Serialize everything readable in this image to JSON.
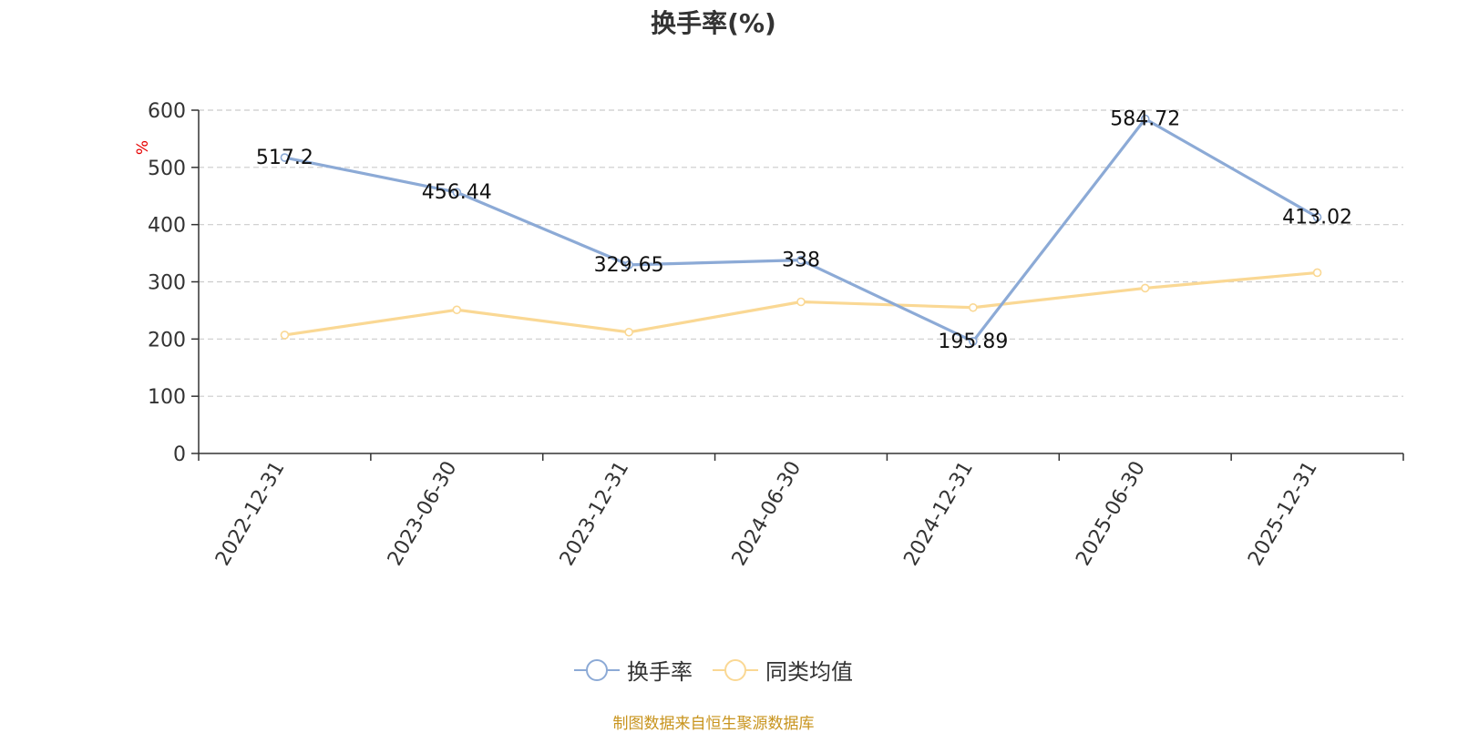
{
  "chart_data": {
    "type": "line",
    "title": "换手率(%)",
    "xlabel": "",
    "ylabel": "%",
    "categories": [
      "2022-12-31",
      "2023-06-30",
      "2023-12-31",
      "2024-06-30",
      "2024-12-31",
      "2025-06-30",
      "2025-12-31"
    ],
    "ylim": [
      0,
      600
    ],
    "yticks": [
      "0",
      "100",
      "200",
      "300",
      "400",
      "500",
      "600"
    ],
    "grid": true,
    "legend_position": "bottom",
    "series": [
      {
        "name": "换手率",
        "color": "#8caad6",
        "values": [
          517.2,
          456.44,
          329.65,
          338,
          195.89,
          584.72,
          413.02
        ],
        "data_labels": [
          "517.2",
          "456.44",
          "329.65",
          "338",
          "195.89",
          "584.72",
          "413.02"
        ]
      },
      {
        "name": "同类均值",
        "color": "#fad894",
        "values": [
          207,
          251,
          212,
          265,
          255,
          289,
          316
        ]
      }
    ]
  },
  "footer": {
    "source": "制图数据来自恒生聚源数据库"
  }
}
